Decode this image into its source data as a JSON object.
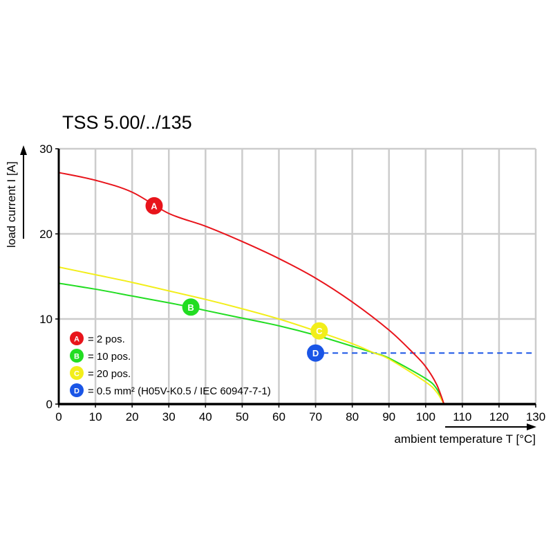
{
  "chart_data": {
    "type": "line",
    "title": "TSS 5.00/../135",
    "xlabel": "ambient temperature T [°C]",
    "ylabel": "load current I [A]",
    "xlim": [
      0,
      130
    ],
    "ylim": [
      0,
      30
    ],
    "xticks": [
      "0",
      "10",
      "20",
      "30",
      "40",
      "50",
      "60",
      "70",
      "80",
      "90",
      "100",
      "110",
      "120",
      "130"
    ],
    "yticks": [
      "0",
      "10",
      "20",
      "30"
    ],
    "grid": true,
    "legend_position": "bottom-left",
    "series": [
      {
        "name": "A",
        "legend": "= 2 pos.",
        "color": "#e8141b",
        "marker_at": [
          26,
          23.3
        ],
        "x": [
          0,
          10,
          20,
          30,
          40,
          50,
          60,
          70,
          80,
          90,
          96.6,
          100,
          103,
          105
        ],
        "y": [
          27.2,
          26.3,
          24.9,
          22.4,
          20.9,
          19.1,
          17.1,
          14.8,
          12.0,
          8.7,
          6.0,
          4.4,
          2.3,
          0
        ]
      },
      {
        "name": "B",
        "legend": "= 10 pos.",
        "color": "#22dd22",
        "marker_at": [
          36,
          11.4
        ],
        "x": [
          0,
          10,
          20,
          30,
          36,
          40,
          50,
          60,
          70,
          80,
          86,
          90,
          100,
          103,
          105
        ],
        "y": [
          14.2,
          13.5,
          12.7,
          11.9,
          11.4,
          11.0,
          10.1,
          9.2,
          8.1,
          6.8,
          6.0,
          5.4,
          3.0,
          1.8,
          0
        ]
      },
      {
        "name": "C",
        "legend": "= 20 pos.",
        "color": "#f2ee1a",
        "marker_at": [
          71,
          8.6
        ],
        "x": [
          0,
          10,
          20,
          30,
          40,
          50,
          60,
          70,
          80,
          86,
          90,
          100,
          103,
          105
        ],
        "y": [
          16.1,
          15.2,
          14.3,
          13.3,
          12.3,
          11.2,
          10.0,
          8.6,
          7.1,
          6.0,
          5.3,
          2.6,
          1.4,
          0
        ]
      },
      {
        "name": "D",
        "legend": "= 0.5 mm² (H05V-K0.5 / IEC 60947-7-1)",
        "color": "#1a55e6",
        "style": "dashed",
        "marker_at": [
          70,
          6
        ],
        "x": [
          72,
          130
        ],
        "y": [
          6,
          6
        ]
      }
    ]
  }
}
